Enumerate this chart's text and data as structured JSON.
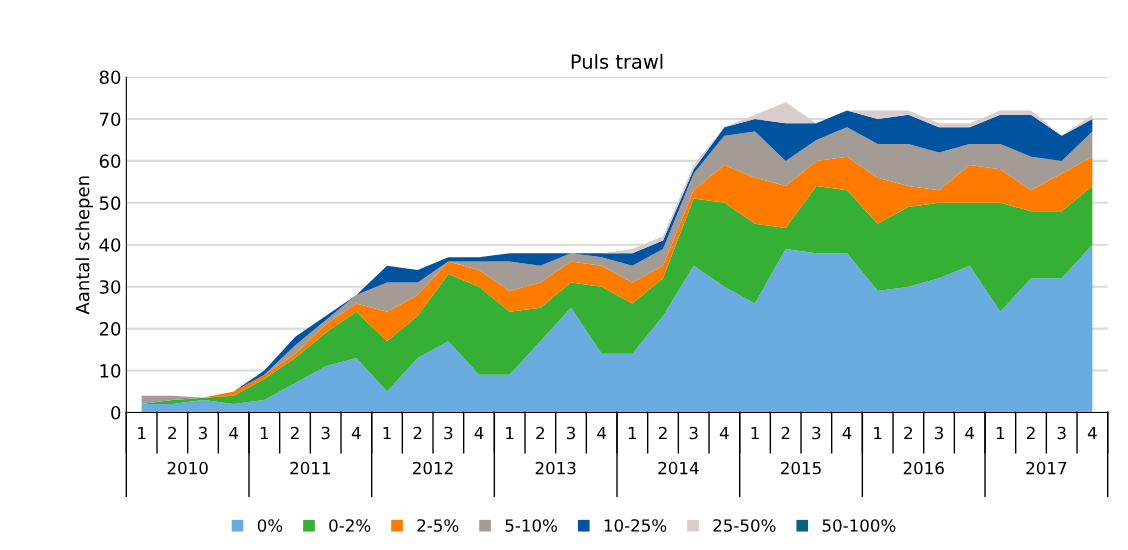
{
  "chart_data": {
    "type": "area",
    "stacked": true,
    "title": "Puls trawl",
    "ylabel": "Aantal schepen",
    "categories": [
      "1",
      "2",
      "3",
      "4",
      "1",
      "2",
      "3",
      "4",
      "1",
      "2",
      "3",
      "4",
      "1",
      "2",
      "3",
      "4",
      "1",
      "2",
      "3",
      "4",
      "1",
      "2",
      "3",
      "4",
      "1",
      "2",
      "3",
      "4",
      "1",
      "2",
      "3",
      "4"
    ],
    "annotations": [
      "2010",
      "2011",
      "2012",
      "2013",
      "2014",
      "2015",
      "2016",
      "2017"
    ],
    "ylim": [
      0,
      80
    ],
    "yticks": [
      0,
      10,
      20,
      30,
      40,
      50,
      60,
      70,
      80
    ],
    "grid": "y",
    "legend": "bottom",
    "series": [
      {
        "name": "0%",
        "color": "#6aace0",
        "values": [
          2,
          2,
          3,
          2,
          3,
          7,
          11,
          13,
          5,
          13,
          17,
          9,
          9,
          17,
          25,
          14,
          14,
          23,
          35,
          30,
          26,
          39,
          38,
          38,
          29,
          30,
          32,
          35,
          24,
          32,
          32,
          40
        ]
      },
      {
        "name": "0-2%",
        "color": "#35b035",
        "values": [
          0,
          1,
          0.5,
          2,
          5,
          6,
          8,
          11,
          12,
          10,
          16,
          21,
          15,
          8,
          6,
          16,
          12,
          9,
          16,
          20,
          19,
          5,
          16,
          15,
          16,
          19,
          18,
          15,
          26,
          16,
          16,
          14
        ]
      },
      {
        "name": "2-5%",
        "color": "#ff7b00",
        "values": [
          0,
          0,
          0,
          1,
          1,
          1,
          2,
          2,
          7,
          5,
          3,
          4,
          5,
          6,
          5,
          5,
          5,
          3,
          2,
          9,
          11,
          10,
          6,
          8,
          11,
          5,
          3,
          9,
          8,
          5,
          9,
          7
        ]
      },
      {
        "name": "5-10%",
        "color": "#a39c96",
        "values": [
          2,
          1,
          0,
          0,
          0,
          2,
          1,
          2,
          7,
          3,
          0,
          2,
          7,
          4,
          2,
          2,
          4,
          4,
          4,
          7,
          11,
          6,
          5,
          7,
          8,
          10,
          9,
          5,
          6,
          8,
          3,
          6
        ]
      },
      {
        "name": "10-25%",
        "color": "#00539f",
        "values": [
          0,
          0,
          0,
          0,
          1,
          2,
          1,
          0,
          4,
          3,
          1,
          1,
          2,
          3,
          0,
          1,
          3,
          2,
          1,
          2,
          3,
          9,
          4,
          4,
          6,
          7,
          6,
          4,
          7,
          10,
          6,
          3
        ]
      },
      {
        "name": "25-50%",
        "color": "#d8cccc",
        "values": [
          0,
          0,
          0,
          0,
          0,
          0,
          0,
          0,
          0,
          0,
          0,
          0,
          0,
          0,
          0,
          0,
          1,
          1,
          1,
          0,
          1,
          5,
          0,
          0,
          2,
          1,
          1,
          1,
          1,
          1,
          0,
          1
        ]
      },
      {
        "name": "50-100%",
        "color": "#0a6080",
        "values": [
          null,
          null,
          null,
          null,
          null,
          null,
          null,
          null,
          null,
          null,
          null,
          null,
          null,
          null,
          null,
          null,
          null,
          null,
          null,
          null,
          null,
          null,
          null,
          null,
          null,
          null,
          null,
          null,
          null,
          null,
          null,
          null
        ]
      }
    ]
  }
}
